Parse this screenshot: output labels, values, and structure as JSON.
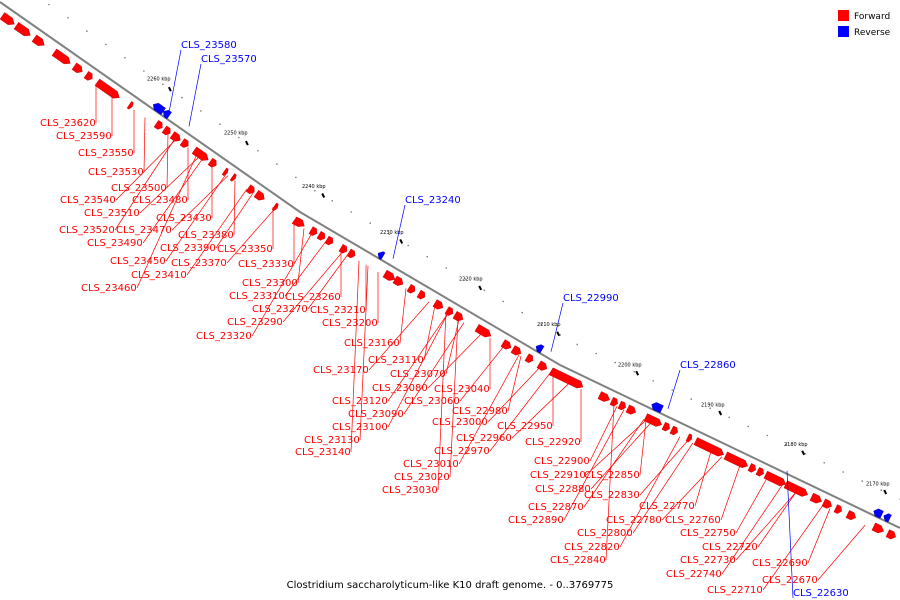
{
  "caption": "Clostridium saccharolyticum-like K10 draft genome. - 0..3769775",
  "legend": [
    {
      "label": "Forward",
      "color": "#ff0000"
    },
    {
      "label": "Reverse",
      "color": "#0000ff"
    }
  ],
  "colors": {
    "forward": "#ff0000",
    "reverse": "#0000ff",
    "backbone": "#808080"
  },
  "ticks": [
    "2260 kbp",
    "2250 kbp",
    "2240 kbp",
    "2230 kbp",
    "2220 kbp",
    "2210 kbp",
    "2200 kbp",
    "2190 kbp",
    "2180 kbp",
    "2170 kbp"
  ],
  "genes": [
    {
      "id": "CLS_23580",
      "strand": "reverse"
    },
    {
      "id": "CLS_23570",
      "strand": "reverse"
    },
    {
      "id": "CLS_23620",
      "strand": "forward"
    },
    {
      "id": "CLS_23590",
      "strand": "forward"
    },
    {
      "id": "CLS_23550",
      "strand": "forward"
    },
    {
      "id": "CLS_23530",
      "strand": "forward"
    },
    {
      "id": "CLS_23500",
      "strand": "forward"
    },
    {
      "id": "CLS_23540",
      "strand": "forward"
    },
    {
      "id": "CLS_23480",
      "strand": "forward"
    },
    {
      "id": "CLS_23510",
      "strand": "forward"
    },
    {
      "id": "CLS_23430",
      "strand": "forward"
    },
    {
      "id": "CLS_23520",
      "strand": "forward"
    },
    {
      "id": "CLS_23470",
      "strand": "forward"
    },
    {
      "id": "CLS_23380",
      "strand": "forward"
    },
    {
      "id": "CLS_23490",
      "strand": "forward"
    },
    {
      "id": "CLS_23390",
      "strand": "forward"
    },
    {
      "id": "CLS_23350",
      "strand": "forward"
    },
    {
      "id": "CLS_23450",
      "strand": "forward"
    },
    {
      "id": "CLS_23370",
      "strand": "forward"
    },
    {
      "id": "CLS_23330",
      "strand": "forward"
    },
    {
      "id": "CLS_23410",
      "strand": "forward"
    },
    {
      "id": "CLS_23460",
      "strand": "forward"
    },
    {
      "id": "CLS_23240",
      "strand": "reverse"
    },
    {
      "id": "CLS_23300",
      "strand": "forward"
    },
    {
      "id": "CLS_23310",
      "strand": "forward"
    },
    {
      "id": "CLS_23260",
      "strand": "forward"
    },
    {
      "id": "CLS_23270",
      "strand": "forward"
    },
    {
      "id": "CLS_23210",
      "strand": "forward"
    },
    {
      "id": "CLS_23290",
      "strand": "forward"
    },
    {
      "id": "CLS_23200",
      "strand": "forward"
    },
    {
      "id": "CLS_23320",
      "strand": "forward"
    },
    {
      "id": "CLS_22990",
      "strand": "reverse"
    },
    {
      "id": "CLS_23160",
      "strand": "forward"
    },
    {
      "id": "CLS_23110",
      "strand": "forward"
    },
    {
      "id": "CLS_23170",
      "strand": "forward"
    },
    {
      "id": "CLS_23070",
      "strand": "forward"
    },
    {
      "id": "CLS_23080",
      "strand": "forward"
    },
    {
      "id": "CLS_23040",
      "strand": "forward"
    },
    {
      "id": "CLS_23120",
      "strand": "forward"
    },
    {
      "id": "CLS_23060",
      "strand": "forward"
    },
    {
      "id": "CLS_23090",
      "strand": "forward"
    },
    {
      "id": "CLS_22980",
      "strand": "forward"
    },
    {
      "id": "CLS_23100",
      "strand": "forward"
    },
    {
      "id": "CLS_23000",
      "strand": "forward"
    },
    {
      "id": "CLS_22950",
      "strand": "forward"
    },
    {
      "id": "CLS_23130",
      "strand": "forward"
    },
    {
      "id": "CLS_22960",
      "strand": "forward"
    },
    {
      "id": "CLS_22920",
      "strand": "forward"
    },
    {
      "id": "CLS_23140",
      "strand": "forward"
    },
    {
      "id": "CLS_22970",
      "strand": "forward"
    },
    {
      "id": "CLS_23010",
      "strand": "forward"
    },
    {
      "id": "CLS_23020",
      "strand": "forward"
    },
    {
      "id": "CLS_23030",
      "strand": "forward"
    },
    {
      "id": "CLS_22860",
      "strand": "reverse"
    },
    {
      "id": "CLS_22900",
      "strand": "forward"
    },
    {
      "id": "CLS_22910",
      "strand": "forward"
    },
    {
      "id": "CLS_22850",
      "strand": "forward"
    },
    {
      "id": "CLS_22880",
      "strand": "forward"
    },
    {
      "id": "CLS_22830",
      "strand": "forward"
    },
    {
      "id": "CLS_22870",
      "strand": "forward"
    },
    {
      "id": "CLS_22770",
      "strand": "forward"
    },
    {
      "id": "CLS_22890",
      "strand": "forward"
    },
    {
      "id": "CLS_22780",
      "strand": "forward"
    },
    {
      "id": "CLS_22760",
      "strand": "forward"
    },
    {
      "id": "CLS_22800",
      "strand": "forward"
    },
    {
      "id": "CLS_22750",
      "strand": "forward"
    },
    {
      "id": "CLS_22820",
      "strand": "forward"
    },
    {
      "id": "CLS_22720",
      "strand": "forward"
    },
    {
      "id": "CLS_22840",
      "strand": "forward"
    },
    {
      "id": "CLS_22730",
      "strand": "forward"
    },
    {
      "id": "CLS_22690",
      "strand": "forward"
    },
    {
      "id": "CLS_22740",
      "strand": "forward"
    },
    {
      "id": "CLS_22670",
      "strand": "forward"
    },
    {
      "id": "CLS_22710",
      "strand": "forward"
    },
    {
      "id": "CLS_22630",
      "strand": "reverse"
    }
  ]
}
